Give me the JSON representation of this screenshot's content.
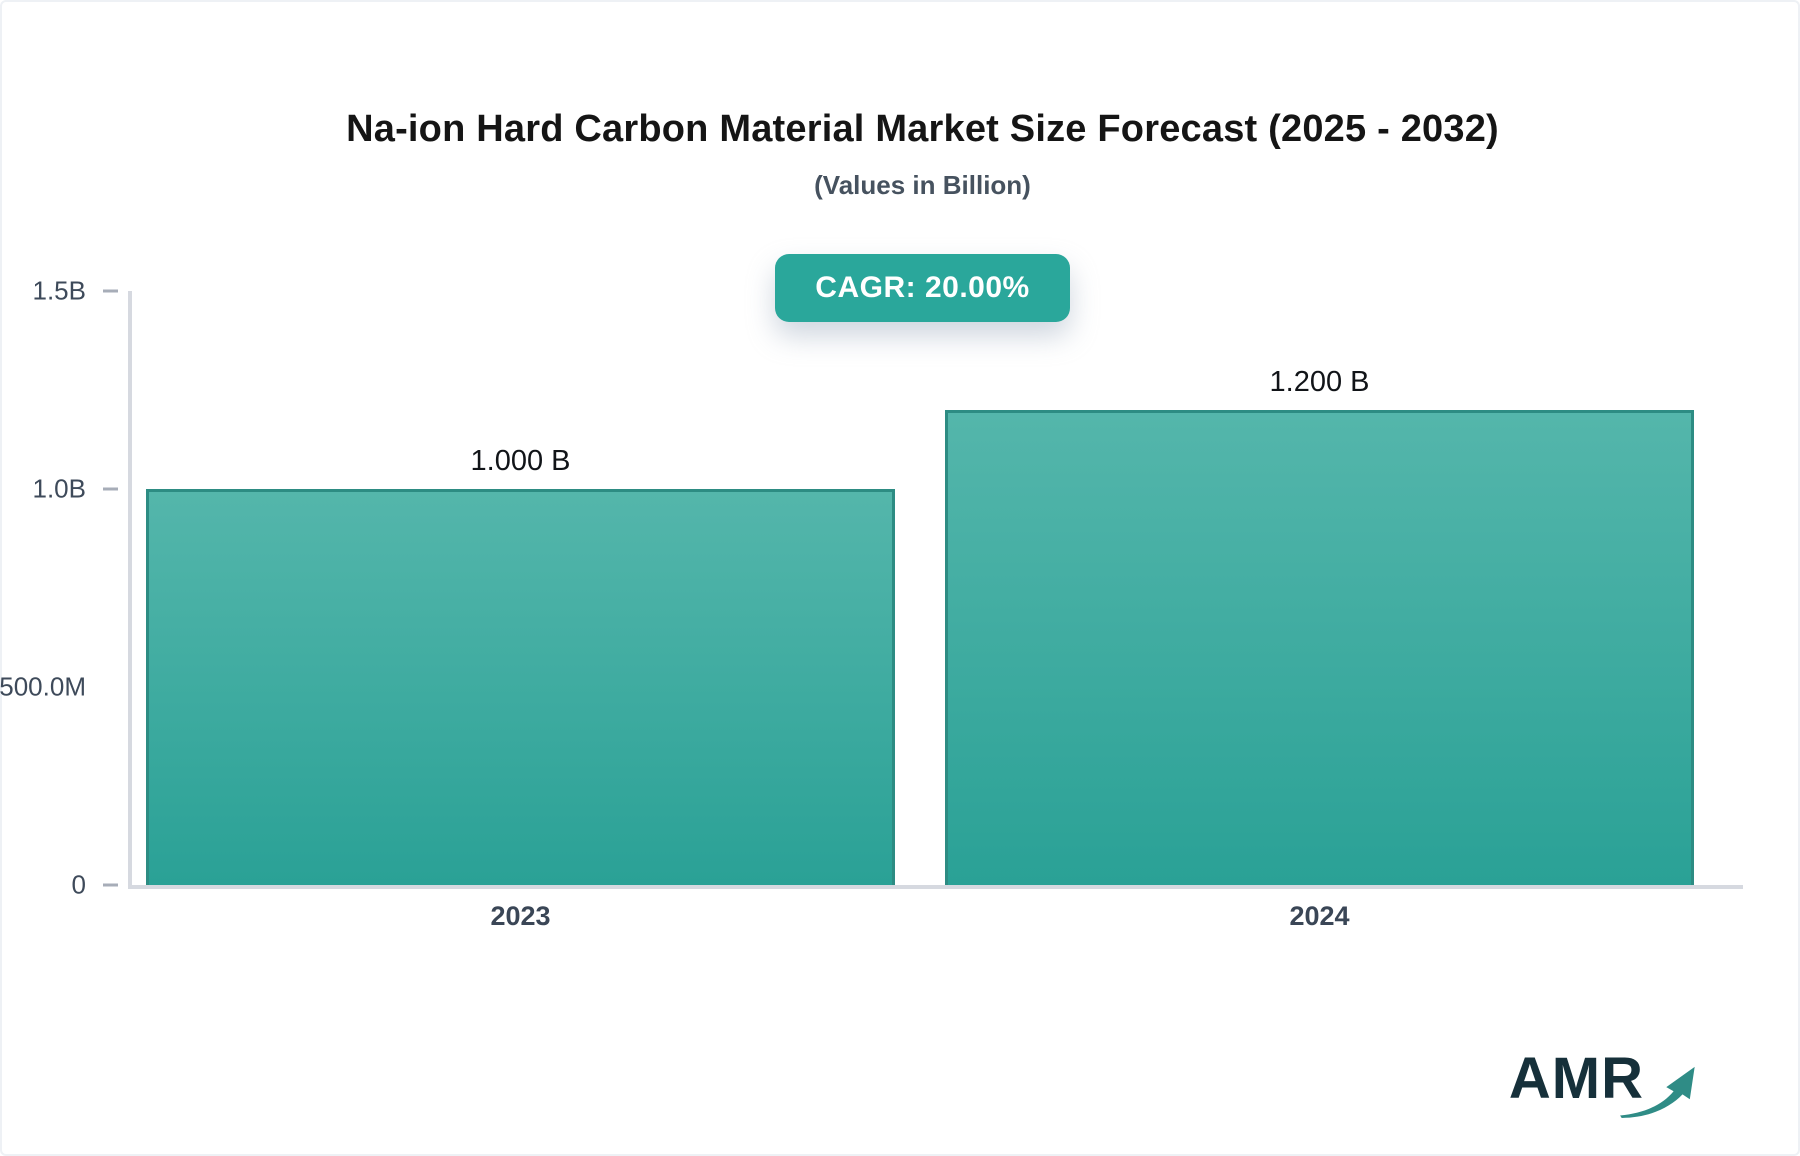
{
  "title": "Na-ion Hard Carbon Material Market Size Forecast (2025 - 2032)",
  "subtitle": "(Values in Billion)",
  "badge": {
    "label": "CAGR: 20.00%"
  },
  "watermark": {
    "text": "AMR"
  },
  "colors": {
    "accent_teal": "#2aa79b",
    "bar_gradient_top": "#54b6ab",
    "bar_gradient_bottom": "#2aa196",
    "bar_border": "#2d8c83",
    "axis_line": "#d6d9e0",
    "tick_dash": "#a7adb8",
    "tick_text": "#3e4a5a",
    "title_text": "#151515",
    "subtitle_text": "#46525f",
    "badge_text": "#ffffff",
    "logo_text": "#16303a",
    "logo_arrow": "#2f8c86"
  },
  "chart_data": {
    "type": "bar",
    "title": "Na-ion Hard Carbon Material Market Size Forecast (2025 - 2032)",
    "subtitle": "(Values in Billion)",
    "unit": "Billion",
    "cagr": "20.00%",
    "categories": [
      "2023",
      "2024"
    ],
    "values": [
      1.0,
      1.2
    ],
    "value_labels": [
      "1.000 B",
      "1.200 B"
    ],
    "ylim": [
      0,
      1.5
    ],
    "yticks": [
      {
        "label": "1.5B",
        "value": 1.5,
        "dash": true
      },
      {
        "label": "1.0B",
        "value": 1.0,
        "dash": true
      },
      {
        "label": "500.0M",
        "value": 0.5,
        "dash": false
      },
      {
        "label": "0",
        "value": 0,
        "dash": true
      }
    ],
    "grid": false,
    "legend": false,
    "xlabel": "",
    "ylabel": ""
  }
}
